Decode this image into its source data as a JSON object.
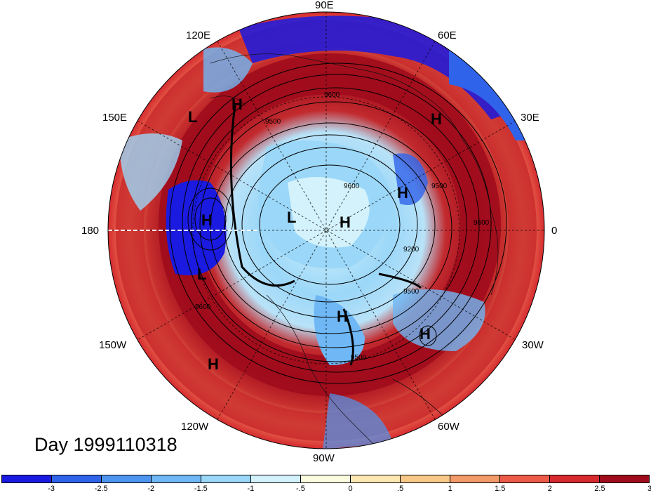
{
  "map": {
    "longitude_labels": [
      {
        "text": "90E",
        "lon": "90E"
      },
      {
        "text": "60E",
        "lon": "60E"
      },
      {
        "text": "120E",
        "lon": "120E"
      },
      {
        "text": "30E",
        "lon": "30E"
      },
      {
        "text": "150E",
        "lon": "150E"
      },
      {
        "text": "180",
        "lon": "180"
      },
      {
        "text": "0",
        "lon": "0"
      },
      {
        "text": "150W",
        "lon": "150W"
      },
      {
        "text": "30W",
        "lon": "30W"
      },
      {
        "text": "120W",
        "lon": "120W"
      },
      {
        "text": "60W",
        "lon": "60W"
      },
      {
        "text": "90W",
        "lon": "90W"
      }
    ],
    "pressure_centers": [
      "L",
      "H",
      "H",
      "H",
      "H",
      "L",
      "H",
      "L",
      "H",
      "H",
      "H"
    ],
    "contour_labels": [
      "9600",
      "9500",
      "9600",
      "9500",
      "9200",
      "9500",
      "9600",
      "9600",
      "9500"
    ]
  },
  "day_label": "Day 1999110318",
  "colorbar": {
    "ticks": [
      "-3",
      "-2.5",
      "-2",
      "-1.5",
      "-1",
      "-.5",
      "0",
      ".5",
      "1",
      "1.5",
      "2",
      "2.5",
      "3"
    ],
    "colors": [
      "#1a1ae0",
      "#2f63ea",
      "#4d95f0",
      "#6fb8f5",
      "#9bd7f8",
      "#d4f2fb",
      "#fbfbe0",
      "#fce8b0",
      "#f7c888",
      "#f29a6a",
      "#ec5a48",
      "#d62a2e",
      "#a00c1c"
    ]
  }
}
